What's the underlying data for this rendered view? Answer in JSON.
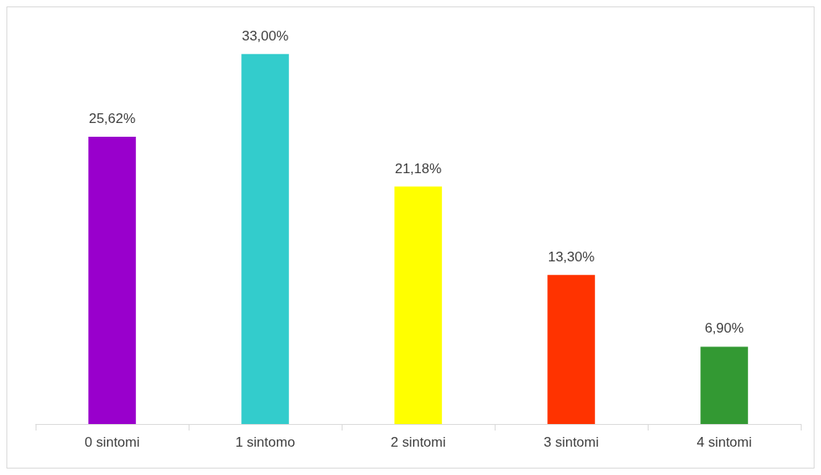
{
  "chart_data": {
    "type": "bar",
    "categories": [
      "0 sintomi",
      "1 sintomo",
      "2 sintomi",
      "3 sintomi",
      "4 sintomi"
    ],
    "values": [
      25.62,
      33.0,
      21.18,
      13.3,
      6.9
    ],
    "value_labels": [
      "25,62%",
      "33,00%",
      "21,18%",
      "13,30%",
      "6,90%"
    ],
    "colors": [
      "#9900cc",
      "#33cccc",
      "#ffff00",
      "#ff3300",
      "#339933"
    ],
    "grid": false
  }
}
